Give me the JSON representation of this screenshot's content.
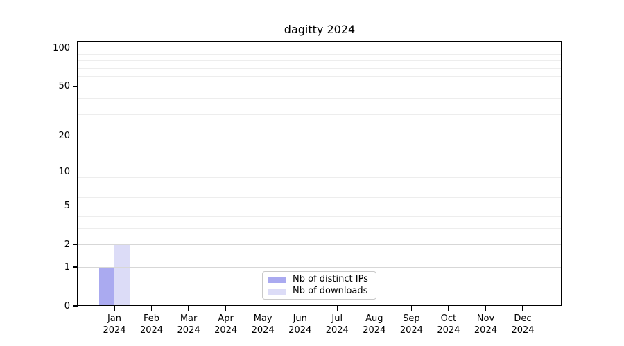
{
  "chart_data": {
    "type": "bar",
    "title": "dagitty 2024",
    "categories": [
      "Jan",
      "Feb",
      "Mar",
      "Apr",
      "May",
      "Jun",
      "Jul",
      "Aug",
      "Sep",
      "Oct",
      "Nov",
      "Dec"
    ],
    "year_label": "2024",
    "series": [
      {
        "name": "Nb of distinct IPs",
        "color": "#aaaaf0",
        "values": [
          1,
          0,
          0,
          0,
          0,
          0,
          0,
          0,
          0,
          0,
          0,
          0
        ]
      },
      {
        "name": "Nb of downloads",
        "color": "#dcdcf7",
        "values": [
          2,
          0,
          0,
          0,
          0,
          0,
          0,
          0,
          0,
          0,
          0,
          0
        ]
      }
    ],
    "y_axis": {
      "scale": "log1p",
      "tick_values": [
        0,
        1,
        2,
        5,
        10,
        20,
        50,
        100
      ],
      "tick_labels": [
        "0",
        "1",
        "2",
        "5",
        "10",
        "20",
        "50",
        "100"
      ],
      "minor_gridline_values": [
        3,
        4,
        6,
        7,
        8,
        9,
        30,
        40,
        60,
        70,
        80,
        90
      ],
      "ylim": [
        0,
        113
      ]
    },
    "xlabel": "",
    "ylabel": "",
    "grid": true,
    "legend": {
      "position": "bottom-center",
      "entries": [
        "Nb of distinct IPs",
        "Nb of downloads"
      ]
    }
  },
  "colors": {
    "background": "#ffffff",
    "spine": "#000000",
    "major_grid": "#d7d7d7",
    "minor_grid": "#ededed",
    "tick_text": "#000000"
  }
}
